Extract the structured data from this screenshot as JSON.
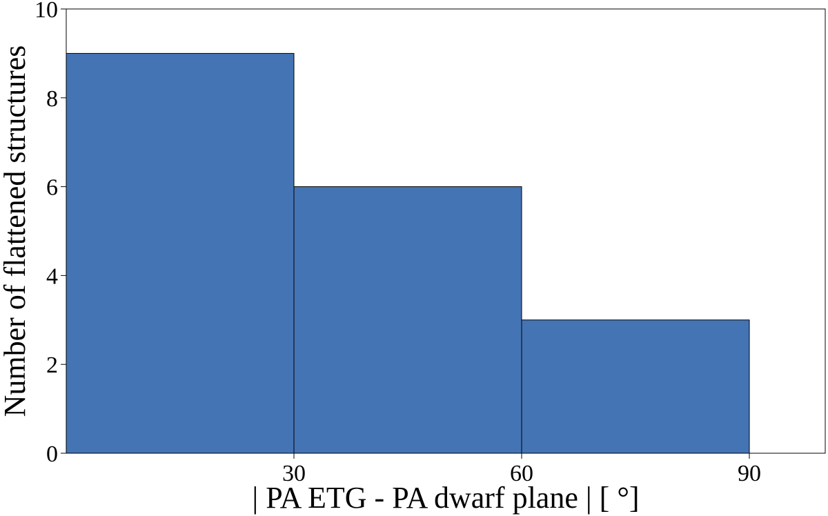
{
  "chart_data": {
    "type": "histogram",
    "x_label": "| PA ETG - PA dwarf plane | [ °]",
    "y_label": "Number of flattened structures",
    "bins": [
      0,
      30,
      60,
      90
    ],
    "counts": [
      9,
      6,
      3
    ],
    "color": "#4474b4",
    "edgecolor": "#000000",
    "xlim": [
      0,
      100
    ],
    "xticks": [
      30,
      60,
      90
    ],
    "ylim": [
      0,
      10
    ],
    "yticks": [
      0,
      2,
      4,
      6,
      8,
      10
    ]
  }
}
